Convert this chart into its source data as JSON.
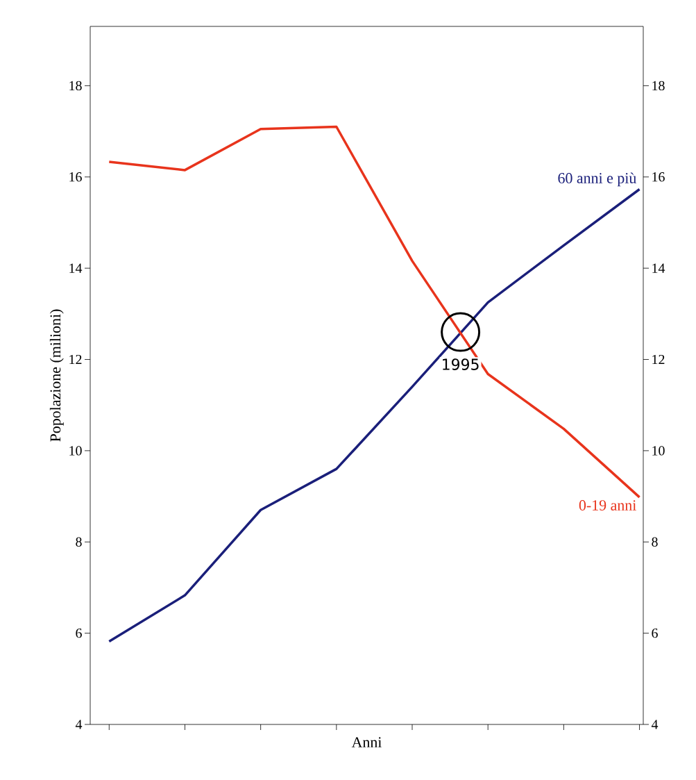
{
  "chart_data": {
    "type": "line",
    "xlabel": "Anni",
    "ylabel": "Popolazione (milioni)",
    "categories": [
      null,
      null,
      null,
      null,
      null,
      null,
      null,
      null
    ],
    "series": [
      {
        "name": "60 anni e più",
        "color": "#1a1f7a",
        "values": [
          5.82,
          6.83,
          8.7,
          9.6,
          11.4,
          13.25,
          14.5,
          15.73
        ]
      },
      {
        "name": "0-19 anni",
        "color": "#e8341c",
        "values": [
          16.33,
          16.15,
          17.05,
          17.1,
          14.16,
          11.68,
          10.48,
          8.98
        ]
      }
    ],
    "ylim": [
      4,
      19.3
    ],
    "yticks": [
      4,
      6,
      8,
      10,
      12,
      14,
      16,
      18
    ],
    "y2lim": [
      4,
      19.3
    ],
    "y2ticks": [
      4,
      6,
      8,
      10,
      12,
      14,
      16,
      18
    ],
    "annotations": [
      {
        "text": "1995",
        "y": 12.6
      }
    ],
    "grid": false,
    "marker": "none",
    "line_style": "solid"
  }
}
